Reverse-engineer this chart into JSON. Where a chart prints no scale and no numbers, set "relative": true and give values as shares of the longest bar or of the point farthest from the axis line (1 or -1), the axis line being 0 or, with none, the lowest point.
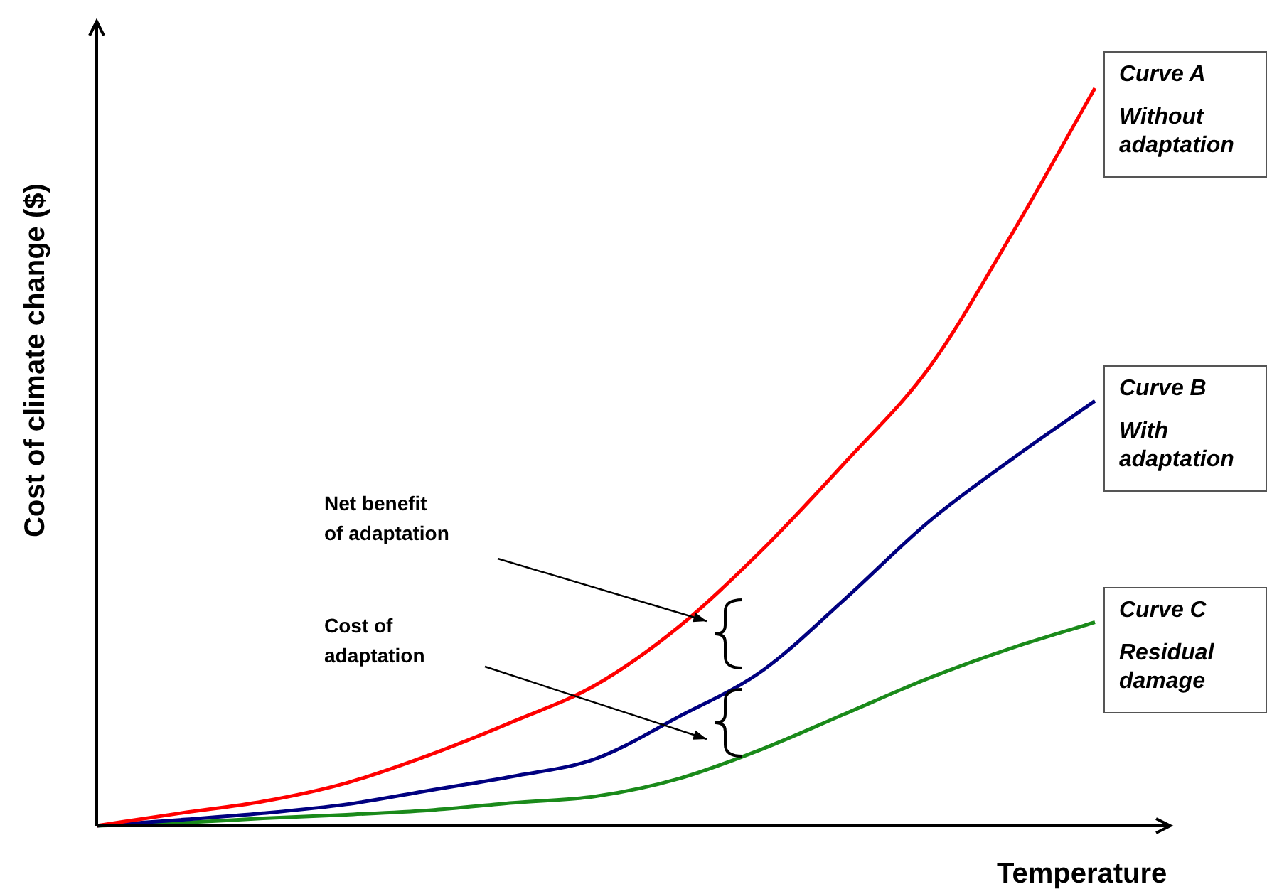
{
  "chart_data": {
    "type": "line",
    "relative": true,
    "ylabel": "Cost of climate change ($)",
    "xlabel": "Temperature",
    "categories": [
      null,
      null,
      null,
      null,
      null,
      null,
      null,
      null,
      null,
      null,
      null,
      null,
      null,
      null
    ],
    "series": [
      {
        "name": "Curve A",
        "color": "#ff0000",
        "values": [
          0,
          0.017,
          0.033,
          0.058,
          0.096,
          0.141,
          0.191,
          0.27,
          0.374,
          0.493,
          0.62,
          0.802,
          1,
          null
        ]
      },
      {
        "name": "Curve B",
        "color": "#000080",
        "values": [
          0,
          0.008,
          0.017,
          0.029,
          0.048,
          0.067,
          0.091,
          0.148,
          0.21,
          0.308,
          0.412,
          0.497,
          0.576,
          null
        ]
      },
      {
        "name": "Curve C",
        "color": "#1a8a1a",
        "values": [
          0,
          0.004,
          0.01,
          0.015,
          0.021,
          0.031,
          0.04,
          0.064,
          0.104,
          0.152,
          0.2,
          0.241,
          0.276,
          null
        ]
      }
    ],
    "annotations": [
      "Without adaptation",
      "With adaptation",
      "Residual damage",
      "Net benefit of adaptation",
      "Cost of adaptation"
    ],
    "grid": false,
    "legend": false,
    "marker": "none",
    "line_style": "solid"
  }
}
